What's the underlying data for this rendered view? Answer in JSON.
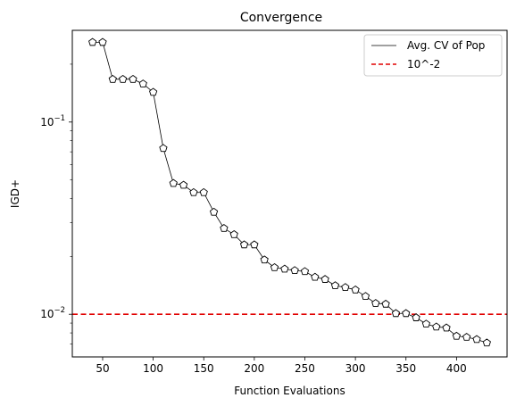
{
  "chart_data": {
    "type": "line",
    "title": "Convergence",
    "xlabel": "Function Evaluations",
    "ylabel": "IGD+",
    "xlim": [
      20,
      450
    ],
    "ylim": [
      0.006,
      0.3
    ],
    "yscale": "log",
    "grid": false,
    "legend_position": "top-right",
    "x_ticks": [
      50,
      100,
      150,
      200,
      250,
      300,
      350,
      400
    ],
    "y_major_ticks": [
      0.01,
      0.1
    ],
    "y_tick_labels": [
      "10^{-2}",
      "10^{-1}"
    ],
    "series": [
      {
        "name": "Avg. CV of Pop",
        "color": "#000000",
        "marker": "pentagon",
        "x": [
          40,
          50,
          60,
          70,
          80,
          90,
          100,
          110,
          120,
          130,
          140,
          150,
          160,
          170,
          180,
          190,
          200,
          210,
          220,
          230,
          240,
          250,
          260,
          270,
          280,
          290,
          300,
          310,
          320,
          330,
          340,
          350,
          360,
          370,
          380,
          390,
          400,
          410,
          420,
          430
        ],
        "y": [
          0.26,
          0.26,
          0.167,
          0.167,
          0.167,
          0.158,
          0.143,
          0.073,
          0.048,
          0.047,
          0.043,
          0.043,
          0.034,
          0.028,
          0.026,
          0.023,
          0.023,
          0.0192,
          0.0175,
          0.0172,
          0.0169,
          0.0167,
          0.0156,
          0.0152,
          0.0141,
          0.0138,
          0.0134,
          0.0124,
          0.0114,
          0.0113,
          0.0101,
          0.0101,
          0.0096,
          0.0089,
          0.0086,
          0.0085,
          0.0077,
          0.0076,
          0.0074,
          0.0071
        ]
      }
    ],
    "reference_lines": [
      {
        "name": "10^-2",
        "y": 0.01,
        "color": "#e00000",
        "style": "dashed"
      }
    ]
  }
}
